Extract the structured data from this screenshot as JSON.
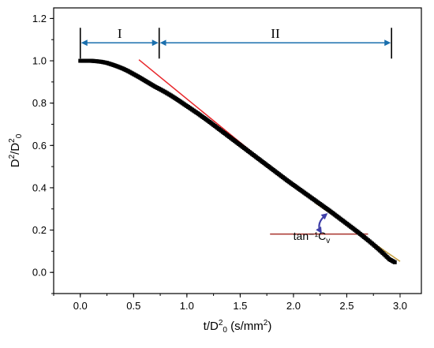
{
  "chart_data": {
    "type": "scatter",
    "title": "",
    "xlabel": "t/D²₀ (s/mm²)",
    "ylabel": "D²/D²₀",
    "xlim": [
      -0.25,
      3.2
    ],
    "ylim": [
      -0.1,
      1.25
    ],
    "xticks": [
      "0.0",
      "0.5",
      "1.0",
      "1.5",
      "2.0",
      "2.5",
      "3.0"
    ],
    "yticks": [
      "0.0",
      "0.2",
      "0.4",
      "0.6",
      "0.8",
      "1.0",
      "1.2"
    ],
    "grid": false,
    "legend": "none",
    "series": [
      {
        "points": [
          [
            0.0,
            1.0
          ],
          [
            0.05,
            1.0
          ],
          [
            0.1,
            1.0
          ],
          [
            0.15,
            0.998
          ],
          [
            0.2,
            0.995
          ],
          [
            0.25,
            0.99
          ],
          [
            0.3,
            0.982
          ],
          [
            0.35,
            0.973
          ],
          [
            0.4,
            0.963
          ],
          [
            0.45,
            0.951
          ],
          [
            0.5,
            0.937
          ],
          [
            0.55,
            0.923
          ],
          [
            0.6,
            0.908
          ],
          [
            0.65,
            0.893
          ],
          [
            0.7,
            0.878
          ],
          [
            0.75,
            0.865
          ],
          [
            0.8,
            0.851
          ],
          [
            0.85,
            0.836
          ],
          [
            0.9,
            0.82
          ],
          [
            0.95,
            0.803
          ],
          [
            1.0,
            0.786
          ],
          [
            1.05,
            0.769
          ],
          [
            1.1,
            0.752
          ],
          [
            1.15,
            0.734
          ],
          [
            1.2,
            0.716
          ],
          [
            1.25,
            0.697
          ],
          [
            1.3,
            0.678
          ],
          [
            1.35,
            0.659
          ],
          [
            1.4,
            0.64
          ],
          [
            1.45,
            0.621
          ],
          [
            1.5,
            0.602
          ],
          [
            1.55,
            0.583
          ],
          [
            1.6,
            0.564
          ],
          [
            1.65,
            0.545
          ],
          [
            1.7,
            0.526
          ],
          [
            1.75,
            0.507
          ],
          [
            1.8,
            0.488
          ],
          [
            1.85,
            0.469
          ],
          [
            1.9,
            0.45
          ],
          [
            1.95,
            0.431
          ],
          [
            2.0,
            0.413
          ],
          [
            2.05,
            0.395
          ],
          [
            2.1,
            0.377
          ],
          [
            2.15,
            0.359
          ],
          [
            2.2,
            0.341
          ],
          [
            2.25,
            0.323
          ],
          [
            2.3,
            0.305
          ],
          [
            2.35,
            0.287
          ],
          [
            2.4,
            0.268
          ],
          [
            2.45,
            0.249
          ],
          [
            2.5,
            0.23
          ],
          [
            2.55,
            0.211
          ],
          [
            2.6,
            0.192
          ],
          [
            2.65,
            0.172
          ],
          [
            2.7,
            0.152
          ],
          [
            2.75,
            0.131
          ],
          [
            2.8,
            0.109
          ],
          [
            2.85,
            0.086
          ],
          [
            2.9,
            0.062
          ],
          [
            2.95,
            0.048
          ]
        ],
        "color": "#000000"
      }
    ],
    "lines": [
      {
        "x": [
          0.55,
          1.85
        ],
        "y": [
          1.005,
          0.47
        ],
        "color": "#e8262a"
      },
      {
        "x": [
          1.78,
          2.7
        ],
        "y": [
          0.181,
          0.181
        ],
        "color": "#a8322b"
      },
      {
        "x": [
          2.2,
          3.0
        ],
        "y": [
          0.33,
          0.052
        ],
        "color": "#c8a040"
      }
    ],
    "regions": [
      {
        "label": "I",
        "start": 0.0,
        "end": 0.74
      },
      {
        "label": "II",
        "start": 0.74,
        "end": 2.92
      }
    ],
    "region_y": 1.085,
    "annotation": {
      "text": "tan⁻¹C",
      "subscript": "v",
      "x": 2.25,
      "y": 0.25
    },
    "colors": {
      "axis": "#000000",
      "arrow": "#1a6fad",
      "angle_arrow": "#3f3fa8"
    }
  }
}
